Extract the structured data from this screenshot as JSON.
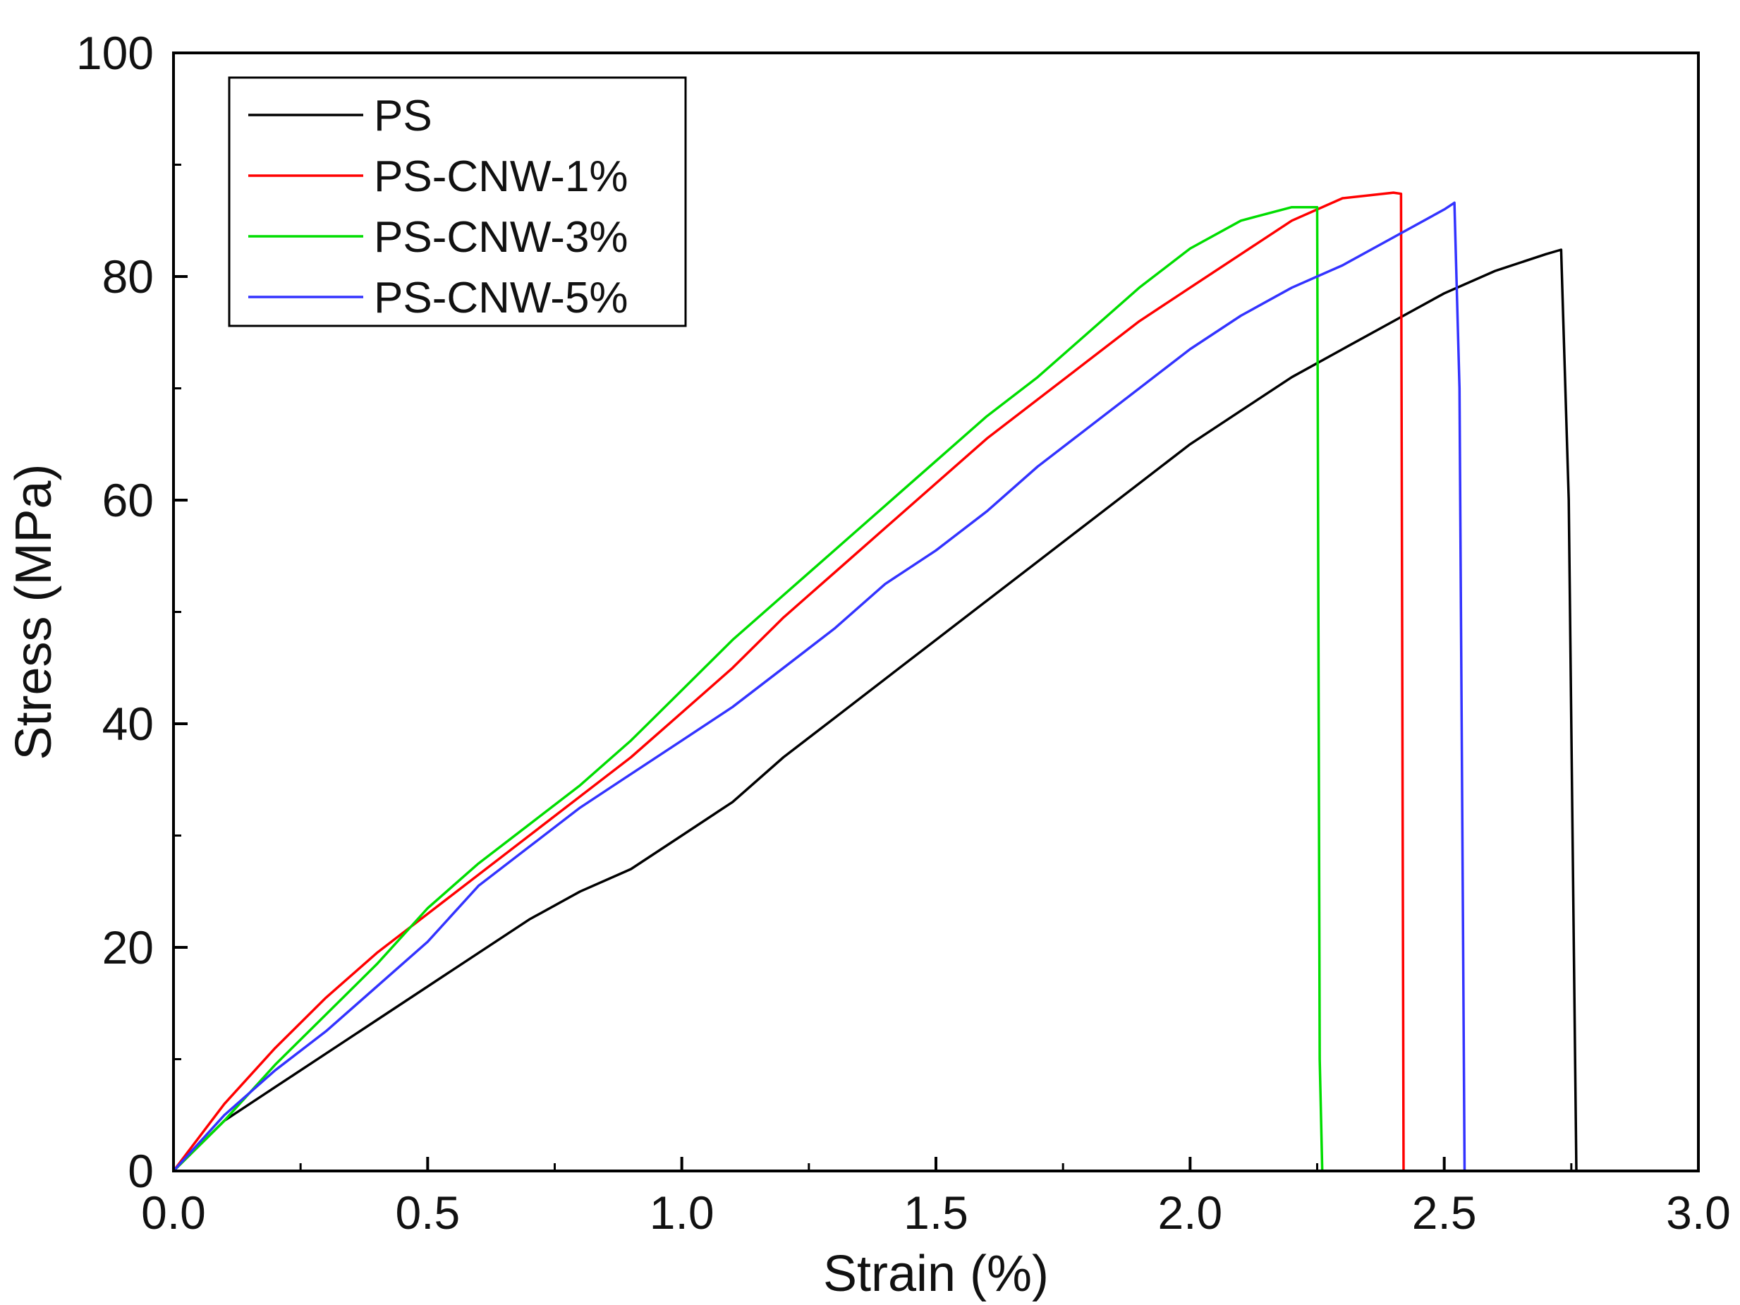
{
  "chart_data": {
    "type": "line",
    "title": "",
    "xlabel": "Strain (%)",
    "ylabel": "Stress (MPa)",
    "xlim": [
      0.0,
      3.0
    ],
    "ylim": [
      0,
      100
    ],
    "xticks": [
      "0.0",
      "0.5",
      "1.0",
      "1.5",
      "2.0",
      "2.5",
      "3.0"
    ],
    "yticks": [
      "0",
      "20",
      "40",
      "60",
      "80",
      "100"
    ],
    "legend_position": "top-left",
    "grid": false,
    "series": [
      {
        "name": "PS",
        "color": "#000000",
        "points": [
          [
            0,
            0
          ],
          [
            0.1,
            4.5
          ],
          [
            0.2,
            7.5
          ],
          [
            0.3,
            10.5
          ],
          [
            0.4,
            13.5
          ],
          [
            0.5,
            16.5
          ],
          [
            0.6,
            19.5
          ],
          [
            0.7,
            22.5
          ],
          [
            0.8,
            25
          ],
          [
            0.9,
            27
          ],
          [
            1.0,
            30
          ],
          [
            1.1,
            33
          ],
          [
            1.2,
            37
          ],
          [
            1.3,
            40.5
          ],
          [
            1.4,
            44
          ],
          [
            1.5,
            47.5
          ],
          [
            1.6,
            51
          ],
          [
            1.7,
            54.5
          ],
          [
            1.8,
            58
          ],
          [
            1.9,
            61.5
          ],
          [
            2.0,
            65
          ],
          [
            2.1,
            68
          ],
          [
            2.2,
            71
          ],
          [
            2.3,
            73.5
          ],
          [
            2.4,
            76
          ],
          [
            2.5,
            78.5
          ],
          [
            2.6,
            80.5
          ],
          [
            2.7,
            82
          ],
          [
            2.73,
            82.4
          ],
          [
            2.745,
            60
          ],
          [
            2.76,
            0
          ]
        ]
      },
      {
        "name": "PS-CNW-1%",
        "color": "#ff0000",
        "points": [
          [
            0,
            0
          ],
          [
            0.1,
            6
          ],
          [
            0.2,
            11
          ],
          [
            0.3,
            15.5
          ],
          [
            0.4,
            19.5
          ],
          [
            0.5,
            23
          ],
          [
            0.6,
            26.5
          ],
          [
            0.7,
            30
          ],
          [
            0.8,
            33.5
          ],
          [
            0.9,
            37
          ],
          [
            1.0,
            41
          ],
          [
            1.1,
            45
          ],
          [
            1.2,
            49.5
          ],
          [
            1.3,
            53.5
          ],
          [
            1.4,
            57.5
          ],
          [
            1.5,
            61.5
          ],
          [
            1.6,
            65.5
          ],
          [
            1.7,
            69
          ],
          [
            1.8,
            72.5
          ],
          [
            1.9,
            76
          ],
          [
            2.0,
            79
          ],
          [
            2.1,
            82
          ],
          [
            2.2,
            85
          ],
          [
            2.3,
            87
          ],
          [
            2.4,
            87.5
          ],
          [
            2.415,
            87.4
          ],
          [
            2.42,
            0
          ]
        ]
      },
      {
        "name": "PS-CNW-3%",
        "color": "#00dd00",
        "points": [
          [
            0,
            0
          ],
          [
            0.1,
            4.5
          ],
          [
            0.2,
            9.5
          ],
          [
            0.3,
            14
          ],
          [
            0.4,
            18.5
          ],
          [
            0.5,
            23.5
          ],
          [
            0.6,
            27.5
          ],
          [
            0.7,
            31
          ],
          [
            0.8,
            34.5
          ],
          [
            0.9,
            38.5
          ],
          [
            1.0,
            43
          ],
          [
            1.1,
            47.5
          ],
          [
            1.2,
            51.5
          ],
          [
            1.3,
            55.5
          ],
          [
            1.4,
            59.5
          ],
          [
            1.5,
            63.5
          ],
          [
            1.6,
            67.5
          ],
          [
            1.7,
            71
          ],
          [
            1.8,
            75
          ],
          [
            1.9,
            79
          ],
          [
            2.0,
            82.5
          ],
          [
            2.1,
            85
          ],
          [
            2.2,
            86.2
          ],
          [
            2.25,
            86.2
          ],
          [
            2.255,
            10
          ],
          [
            2.26,
            0
          ]
        ]
      },
      {
        "name": "PS-CNW-5%",
        "color": "#3333ff",
        "points": [
          [
            0,
            0
          ],
          [
            0.1,
            5
          ],
          [
            0.2,
            9
          ],
          [
            0.3,
            12.5
          ],
          [
            0.4,
            16.5
          ],
          [
            0.5,
            20.5
          ],
          [
            0.6,
            25.5
          ],
          [
            0.7,
            29
          ],
          [
            0.8,
            32.5
          ],
          [
            0.9,
            35.5
          ],
          [
            1.0,
            38.5
          ],
          [
            1.1,
            41.5
          ],
          [
            1.2,
            45
          ],
          [
            1.3,
            48.5
          ],
          [
            1.4,
            52.5
          ],
          [
            1.5,
            55.5
          ],
          [
            1.6,
            59
          ],
          [
            1.7,
            63
          ],
          [
            1.8,
            66.5
          ],
          [
            1.9,
            70
          ],
          [
            2.0,
            73.5
          ],
          [
            2.1,
            76.5
          ],
          [
            2.2,
            79
          ],
          [
            2.3,
            81
          ],
          [
            2.4,
            83.5
          ],
          [
            2.5,
            86
          ],
          [
            2.52,
            86.6
          ],
          [
            2.53,
            70
          ],
          [
            2.54,
            0
          ]
        ]
      }
    ]
  }
}
